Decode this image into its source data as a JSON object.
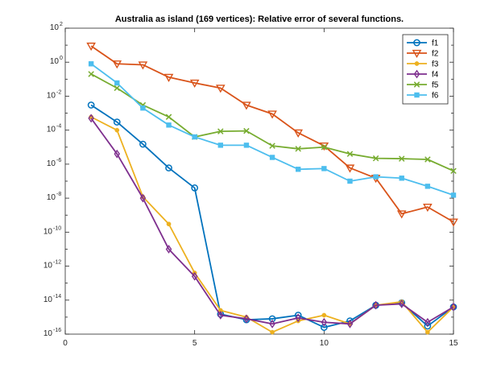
{
  "chart_data": {
    "type": "line",
    "title": "Australia as island (169 vertices): Relative error of several functions.",
    "xlabel": "",
    "ylabel": "",
    "xlim": [
      0,
      15
    ],
    "ylim": [
      1e-16,
      100
    ],
    "yscale": "log",
    "grid": false,
    "legend_position": "top-right",
    "x_ticks": [
      "0",
      "5",
      "10",
      "15"
    ],
    "y_ticks": [
      {
        "exp": -16,
        "label": "10",
        "sup": "-16"
      },
      {
        "exp": -14,
        "label": "10",
        "sup": "-14"
      },
      {
        "exp": -12,
        "label": "10",
        "sup": "-12"
      },
      {
        "exp": -10,
        "label": "10",
        "sup": "-10"
      },
      {
        "exp": -8,
        "label": "10",
        "sup": "-8"
      },
      {
        "exp": -6,
        "label": "10",
        "sup": "-6"
      },
      {
        "exp": -4,
        "label": "10",
        "sup": "-4"
      },
      {
        "exp": -2,
        "label": "10",
        "sup": "-2"
      },
      {
        "exp": 0,
        "label": "10",
        "sup": "0"
      },
      {
        "exp": 2,
        "label": "10",
        "sup": "2"
      }
    ],
    "x": [
      1,
      2,
      3,
      4,
      5,
      6,
      7,
      8,
      9,
      10,
      11,
      12,
      13,
      14,
      15
    ],
    "series": [
      {
        "name": "f1",
        "color": "#0072BD",
        "marker": "circle",
        "values": [
          0.003,
          0.0003,
          1.5e-05,
          6e-07,
          4e-08,
          1.5e-15,
          7e-16,
          8e-16,
          1.3e-15,
          2.5e-16,
          6e-16,
          5e-15,
          7e-15,
          3e-16,
          4e-15
        ]
      },
      {
        "name": "f2",
        "color": "#D95319",
        "marker": "triangle-down",
        "values": [
          9,
          0.8,
          0.7,
          0.13,
          0.06,
          0.03,
          0.003,
          0.0009,
          7e-05,
          1.2e-05,
          6e-07,
          1.5e-07,
          1.2e-09,
          3e-09,
          4e-10
        ]
      },
      {
        "name": "f3",
        "color": "#EDB120",
        "marker": "dot",
        "values": [
          0.0006,
          0.0001,
          1.2e-08,
          3e-10,
          4e-13,
          2.5e-15,
          1e-15,
          1.3e-16,
          6e-16,
          1.3e-15,
          4e-16,
          5e-15,
          8e-15,
          1.3e-16,
          4e-15
        ]
      },
      {
        "name": "f4",
        "color": "#7E2F8E",
        "marker": "diamond",
        "values": [
          0.0005,
          4e-06,
          1e-08,
          1e-11,
          2.5e-13,
          1.3e-15,
          8e-16,
          4e-16,
          9e-16,
          5e-16,
          4e-16,
          5e-15,
          6e-15,
          5e-16,
          4e-15
        ]
      },
      {
        "name": "f5",
        "color": "#77AC30",
        "marker": "x",
        "values": [
          0.2,
          0.03,
          0.003,
          0.0006,
          4e-05,
          8.5e-05,
          9e-05,
          1.2e-05,
          8e-06,
          1e-05,
          4e-06,
          2.2e-06,
          2.1e-06,
          1.9e-06,
          4e-07
        ]
      },
      {
        "name": "f6",
        "color": "#4DBEEE",
        "marker": "square",
        "values": [
          0.8,
          0.06,
          0.002,
          0.0002,
          4e-05,
          1.3e-05,
          1.3e-05,
          2.5e-06,
          5e-07,
          5.5e-07,
          1e-07,
          1.8e-07,
          1.5e-07,
          5e-08,
          1.5e-08
        ]
      }
    ]
  }
}
